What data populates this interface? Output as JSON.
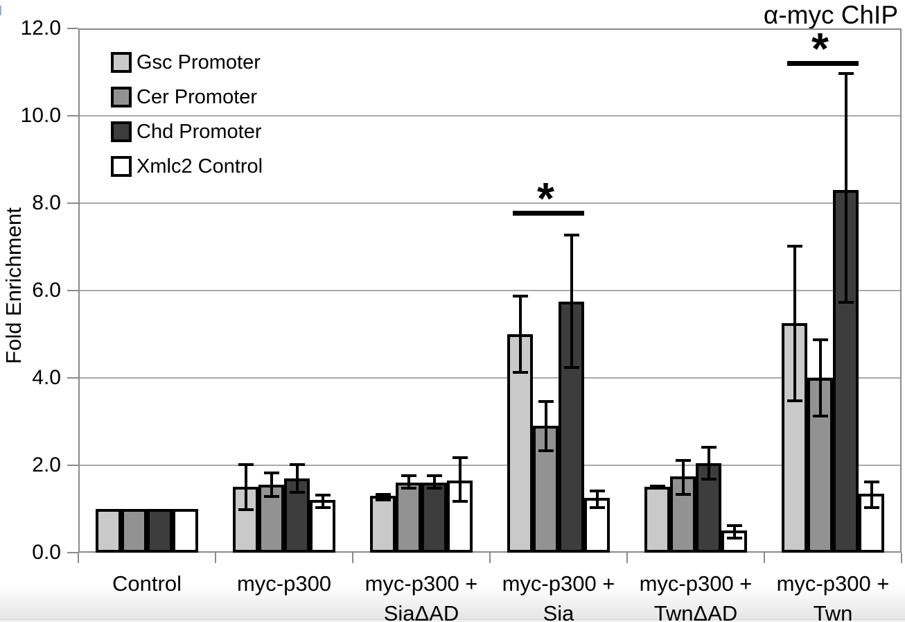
{
  "chart_data": {
    "type": "bar",
    "title": "α-myc ChIP",
    "ylabel": "Fold Enrichment",
    "ylim": [
      0,
      12
    ],
    "ytick_step": 2,
    "ytick_labels": [
      "0.0",
      "2.0",
      "4.0",
      "6.0",
      "8.0",
      "10.0",
      "12.0"
    ],
    "grid": true,
    "legend_position": "top-left",
    "categories": [
      "Control",
      "myc-p300",
      "myc-p300 + SiaΔAD",
      "myc-p300 + Sia",
      "myc-p300 + TwnΔAD",
      "myc-p300 + Twn"
    ],
    "category_lines": [
      [
        "Control"
      ],
      [
        "myc-p300"
      ],
      [
        "myc-p300 +",
        "SiaΔAD"
      ],
      [
        "myc-p300 +",
        "Sia"
      ],
      [
        "myc-p300 +",
        "TwnΔAD"
      ],
      [
        "myc-p300 +",
        "Twn"
      ]
    ],
    "series": [
      {
        "name": "Gsc Promoter",
        "color": "#c9c9c9",
        "values": [
          1.0,
          1.5,
          1.3,
          5.0,
          1.5,
          5.25
        ],
        "errors": [
          null,
          [
            0.95,
            2.05
          ],
          [
            1.18,
            1.37
          ],
          [
            4.1,
            5.9
          ],
          [
            1.45,
            1.55
          ],
          [
            3.45,
            7.05
          ]
        ]
      },
      {
        "name": "Cer Promoter",
        "color": "#929292",
        "values": [
          1.0,
          1.55,
          1.6,
          2.9,
          1.75,
          4.0
        ],
        "errors": [
          null,
          [
            1.25,
            1.85
          ],
          [
            1.45,
            1.8
          ],
          [
            2.3,
            3.5
          ],
          [
            1.3,
            2.15
          ],
          [
            3.1,
            4.9
          ]
        ]
      },
      {
        "name": "Chd Promoter",
        "color": "#3d3d3d",
        "values": [
          1.0,
          1.7,
          1.6,
          5.75,
          2.05,
          8.3
        ],
        "errors": [
          null,
          [
            1.35,
            2.05
          ],
          [
            1.45,
            1.8
          ],
          [
            4.2,
            7.3
          ],
          [
            1.65,
            2.45
          ],
          [
            5.7,
            11.0
          ]
        ]
      },
      {
        "name": "Xmlc2 Control",
        "color": "#ffffff",
        "values": [
          1.0,
          1.2,
          1.65,
          1.25,
          0.5,
          1.35
        ],
        "errors": [
          null,
          [
            1.0,
            1.35
          ],
          [
            1.15,
            2.2
          ],
          [
            1.0,
            1.45
          ],
          [
            0.3,
            0.65
          ],
          [
            1.0,
            1.65
          ]
        ]
      }
    ],
    "significance": [
      {
        "category_index": 3,
        "from_series": 0,
        "to_series": 2,
        "line_y": 7.78,
        "label": "*"
      },
      {
        "category_index": 5,
        "from_series": 0,
        "to_series": 2,
        "line_y": 11.2,
        "label": "*"
      }
    ]
  }
}
